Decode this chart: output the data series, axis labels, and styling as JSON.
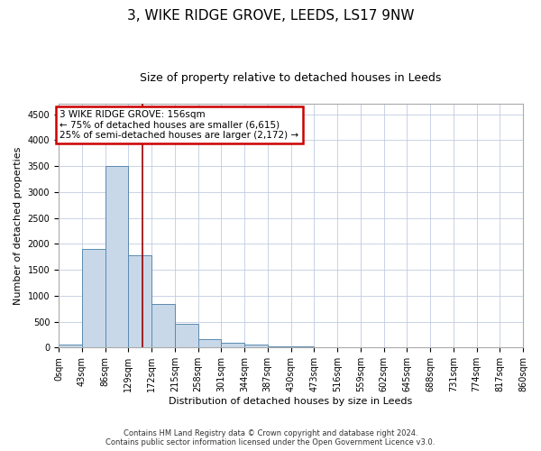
{
  "title": "3, WIKE RIDGE GROVE, LEEDS, LS17 9NW",
  "subtitle": "Size of property relative to detached houses in Leeds",
  "xlabel": "Distribution of detached houses by size in Leeds",
  "ylabel": "Number of detached properties",
  "footer_line1": "Contains HM Land Registry data © Crown copyright and database right 2024.",
  "footer_line2": "Contains public sector information licensed under the Open Government Licence v3.0.",
  "bin_edges": [
    0,
    43,
    86,
    129,
    172,
    215,
    258,
    301,
    344,
    387,
    430,
    473,
    516,
    559,
    602,
    645,
    688,
    731,
    774,
    817,
    860
  ],
  "bar_heights": [
    50,
    1900,
    3500,
    1780,
    840,
    460,
    160,
    90,
    50,
    30,
    30,
    0,
    0,
    0,
    0,
    0,
    0,
    0,
    0,
    0
  ],
  "bar_color": "#c8d8e8",
  "bar_edge_color": "#5a8ab0",
  "property_size": 156,
  "red_line_color": "#990000",
  "annotation_text_line1": "3 WIKE RIDGE GROVE: 156sqm",
  "annotation_text_line2": "← 75% of detached houses are smaller (6,615)",
  "annotation_text_line3": "25% of semi-detached houses are larger (2,172) →",
  "annotation_box_color": "#cc0000",
  "ylim": [
    0,
    4700
  ],
  "yticks": [
    0,
    500,
    1000,
    1500,
    2000,
    2500,
    3000,
    3500,
    4000,
    4500
  ],
  "background_color": "#ffffff",
  "grid_color": "#c0cce0",
  "title_fontsize": 11,
  "subtitle_fontsize": 9,
  "tick_label_fontsize": 7,
  "axis_label_fontsize": 8,
  "annotation_fontsize": 7.5,
  "footer_fontsize": 6
}
